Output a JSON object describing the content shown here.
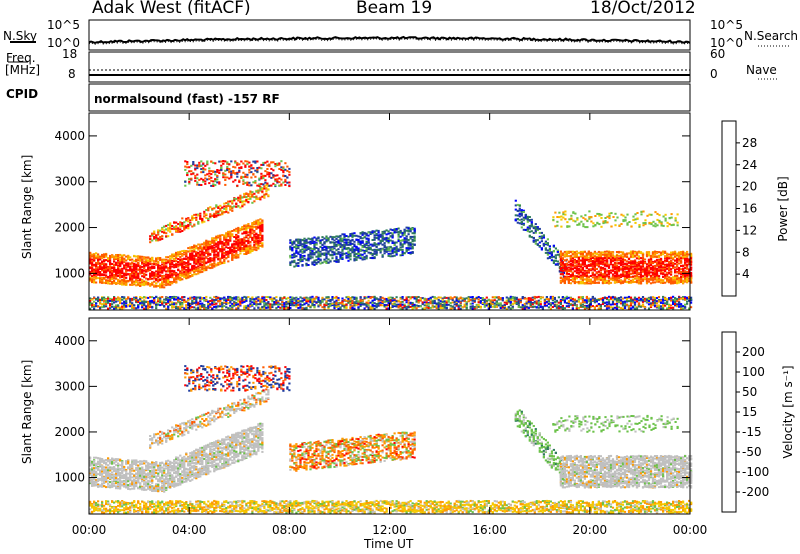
{
  "header": {
    "station": "Adak West (fitACF)",
    "beam": "Beam 19",
    "date": "18/Oct/2012"
  },
  "noise_panel": {
    "left_label": "N.Sky",
    "right_label": "N.Search",
    "left_ticks": [
      "10^5",
      "10^0"
    ],
    "right_ticks": [
      "10^5",
      "10^0"
    ]
  },
  "freq_panel": {
    "left_label_1": "Freq.",
    "left_label_2": "[MHz]",
    "right_label": "Nave",
    "left_ticks": [
      "18",
      "8"
    ],
    "right_ticks": [
      "60",
      "0"
    ]
  },
  "cpid_panel": {
    "label": "CPID",
    "mode": "normalsound (fast) -157 RF"
  },
  "chart_data": [
    {
      "type": "heatmap",
      "name": "power",
      "ylabel": "Slant Range [km]",
      "ylim": [
        200,
        4500
      ],
      "yticks": [
        1000,
        2000,
        3000,
        4000
      ],
      "xlim": [
        0,
        24
      ],
      "colorbar": {
        "label": "Power [dB]",
        "ticks": [
          "28",
          "24",
          "20",
          "16",
          "12",
          "8",
          "4"
        ],
        "colors": [
          "#0000ff",
          "#1e3ca0",
          "#2e7d5a",
          "#6cc24a",
          "#f5c800",
          "#ff9a00",
          "#ff5a00",
          "#ff0000"
        ]
      }
    },
    {
      "type": "heatmap",
      "name": "velocity",
      "ylabel": "Slant Range [km]",
      "ylim": [
        200,
        4500
      ],
      "yticks": [
        1000,
        2000,
        3000,
        4000
      ],
      "xlim": [
        0,
        24
      ],
      "xticks": [
        "00:00",
        "04:00",
        "08:00",
        "12:00",
        "16:00",
        "20:00",
        "00:00"
      ],
      "xlabel": "Time UT",
      "colorbar": {
        "label": "Velocity [m s⁻¹]",
        "ticks": [
          "200",
          "100",
          "50",
          "15",
          "-15",
          "-50",
          "-100",
          "-200"
        ],
        "colors": [
          "#ff0000",
          "#ff5a00",
          "#ff9a00",
          "#f5c800",
          "#c0c0c0",
          "#6cc24a",
          "#2e7d5a",
          "#1e3ca0",
          "#1020c0"
        ]
      }
    }
  ]
}
